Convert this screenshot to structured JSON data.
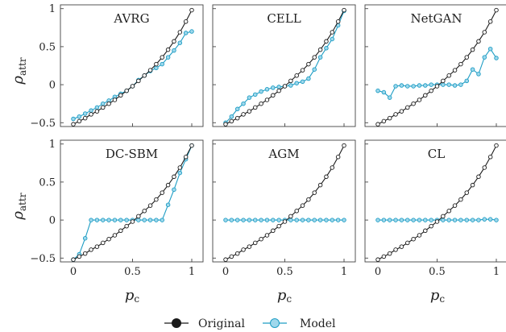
{
  "figure": {
    "ylabel_main": "ρ",
    "ylabel_sub": "attr",
    "xlabel": "p",
    "xlabel_sub": "c",
    "xticks": [
      "0",
      "0.5",
      "1"
    ],
    "yticks": [
      "1",
      "0.5",
      "0",
      "−0.5"
    ],
    "legend": [
      {
        "label": "Original",
        "color": "#1a1a1a",
        "fill": "#1a1a1a"
      },
      {
        "label": "Model",
        "color": "#1e9dc4",
        "fill": "#9fd8ec"
      }
    ]
  },
  "chart_data": [
    {
      "type": "line",
      "title": "AVRG",
      "xlim": [
        0,
        1
      ],
      "ylim": [
        -0.55,
        1.05
      ],
      "series": [
        {
          "name": "Original",
          "x": [
            0,
            0.05,
            0.1,
            0.15,
            0.2,
            0.25,
            0.3,
            0.35,
            0.4,
            0.45,
            0.5,
            0.55,
            0.6,
            0.65,
            0.7,
            0.75,
            0.8,
            0.85,
            0.9,
            0.95,
            1
          ],
          "values": [
            -0.52,
            -0.48,
            -0.44,
            -0.39,
            -0.35,
            -0.3,
            -0.25,
            -0.2,
            -0.14,
            -0.08,
            -0.02,
            0.05,
            0.12,
            0.19,
            0.27,
            0.36,
            0.46,
            0.57,
            0.69,
            0.83,
            0.98
          ]
        },
        {
          "name": "Model",
          "x": [
            0,
            0.05,
            0.1,
            0.15,
            0.2,
            0.25,
            0.3,
            0.35,
            0.4,
            0.45,
            0.5,
            0.55,
            0.6,
            0.65,
            0.7,
            0.75,
            0.8,
            0.85,
            0.9,
            0.95,
            1
          ],
          "values": [
            -0.45,
            -0.42,
            -0.38,
            -0.34,
            -0.3,
            -0.25,
            -0.21,
            -0.16,
            -0.12,
            -0.08,
            -0.02,
            0.06,
            0.12,
            0.18,
            0.22,
            0.27,
            0.36,
            0.45,
            0.55,
            0.68,
            0.7
          ]
        }
      ]
    },
    {
      "type": "line",
      "title": "CELL",
      "xlim": [
        0,
        1
      ],
      "ylim": [
        -0.55,
        1.05
      ],
      "series": [
        {
          "name": "Original",
          "x": [
            0,
            0.05,
            0.1,
            0.15,
            0.2,
            0.25,
            0.3,
            0.35,
            0.4,
            0.45,
            0.5,
            0.55,
            0.6,
            0.65,
            0.7,
            0.75,
            0.8,
            0.85,
            0.9,
            0.95,
            1
          ],
          "values": [
            -0.52,
            -0.48,
            -0.44,
            -0.39,
            -0.35,
            -0.3,
            -0.25,
            -0.2,
            -0.14,
            -0.08,
            -0.02,
            0.05,
            0.12,
            0.19,
            0.27,
            0.36,
            0.46,
            0.57,
            0.69,
            0.83,
            0.98
          ]
        },
        {
          "name": "Model",
          "x": [
            0,
            0.05,
            0.1,
            0.15,
            0.2,
            0.25,
            0.3,
            0.35,
            0.4,
            0.45,
            0.5,
            0.55,
            0.6,
            0.65,
            0.7,
            0.75,
            0.8,
            0.85,
            0.9,
            0.95,
            1
          ],
          "values": [
            -0.5,
            -0.42,
            -0.32,
            -0.25,
            -0.17,
            -0.13,
            -0.09,
            -0.06,
            -0.04,
            -0.03,
            -0.02,
            -0.01,
            0.02,
            0.04,
            0.08,
            0.2,
            0.36,
            0.48,
            0.6,
            0.78,
            0.97
          ]
        }
      ]
    },
    {
      "type": "line",
      "title": "NetGAN",
      "xlim": [
        0,
        1
      ],
      "ylim": [
        -0.55,
        1.05
      ],
      "series": [
        {
          "name": "Original",
          "x": [
            0,
            0.05,
            0.1,
            0.15,
            0.2,
            0.25,
            0.3,
            0.35,
            0.4,
            0.45,
            0.5,
            0.55,
            0.6,
            0.65,
            0.7,
            0.75,
            0.8,
            0.85,
            0.9,
            0.95,
            1
          ],
          "values": [
            -0.52,
            -0.48,
            -0.44,
            -0.39,
            -0.35,
            -0.3,
            -0.25,
            -0.2,
            -0.14,
            -0.08,
            -0.02,
            0.05,
            0.12,
            0.19,
            0.27,
            0.36,
            0.46,
            0.57,
            0.69,
            0.83,
            0.98
          ]
        },
        {
          "name": "Model",
          "x": [
            0,
            0.05,
            0.1,
            0.15,
            0.2,
            0.25,
            0.3,
            0.35,
            0.4,
            0.45,
            0.5,
            0.55,
            0.6,
            0.65,
            0.7,
            0.75,
            0.8,
            0.85,
            0.9,
            0.95,
            1
          ],
          "values": [
            -0.08,
            -0.1,
            -0.17,
            -0.02,
            -0.01,
            -0.02,
            -0.02,
            -0.01,
            -0.01,
            0.0,
            0.0,
            0.0,
            0.0,
            -0.01,
            0.0,
            0.05,
            0.2,
            0.14,
            0.36,
            0.47,
            0.35
          ]
        }
      ]
    },
    {
      "type": "line",
      "title": "DC-SBM",
      "xlim": [
        0,
        1
      ],
      "ylim": [
        -0.55,
        1.05
      ],
      "series": [
        {
          "name": "Original",
          "x": [
            0,
            0.05,
            0.1,
            0.15,
            0.2,
            0.25,
            0.3,
            0.35,
            0.4,
            0.45,
            0.5,
            0.55,
            0.6,
            0.65,
            0.7,
            0.75,
            0.8,
            0.85,
            0.9,
            0.95,
            1
          ],
          "values": [
            -0.52,
            -0.48,
            -0.44,
            -0.39,
            -0.35,
            -0.3,
            -0.25,
            -0.2,
            -0.14,
            -0.08,
            -0.02,
            0.05,
            0.12,
            0.19,
            0.27,
            0.36,
            0.46,
            0.57,
            0.69,
            0.83,
            0.98
          ]
        },
        {
          "name": "Model",
          "x": [
            0,
            0.05,
            0.1,
            0.15,
            0.2,
            0.25,
            0.3,
            0.35,
            0.4,
            0.45,
            0.5,
            0.55,
            0.6,
            0.65,
            0.7,
            0.75,
            0.8,
            0.85,
            0.9,
            0.95,
            1
          ],
          "values": [
            -0.52,
            -0.45,
            -0.24,
            0.0,
            0.0,
            0.0,
            0.0,
            0.0,
            0.0,
            0.0,
            0.0,
            0.0,
            0.0,
            0.0,
            0.0,
            0.0,
            0.2,
            0.4,
            0.62,
            0.8,
            0.98
          ]
        }
      ]
    },
    {
      "type": "line",
      "title": "AGM",
      "xlim": [
        0,
        1
      ],
      "ylim": [
        -0.55,
        1.05
      ],
      "series": [
        {
          "name": "Original",
          "x": [
            0,
            0.05,
            0.1,
            0.15,
            0.2,
            0.25,
            0.3,
            0.35,
            0.4,
            0.45,
            0.5,
            0.55,
            0.6,
            0.65,
            0.7,
            0.75,
            0.8,
            0.85,
            0.9,
            0.95,
            1
          ],
          "values": [
            -0.52,
            -0.48,
            -0.44,
            -0.39,
            -0.35,
            -0.3,
            -0.25,
            -0.2,
            -0.14,
            -0.08,
            -0.02,
            0.05,
            0.12,
            0.19,
            0.27,
            0.36,
            0.46,
            0.57,
            0.69,
            0.83,
            0.98
          ]
        },
        {
          "name": "Model",
          "x": [
            0,
            0.05,
            0.1,
            0.15,
            0.2,
            0.25,
            0.3,
            0.35,
            0.4,
            0.45,
            0.5,
            0.55,
            0.6,
            0.65,
            0.7,
            0.75,
            0.8,
            0.85,
            0.9,
            0.95,
            1
          ],
          "values": [
            0,
            0,
            0,
            0,
            0,
            0,
            0,
            0,
            0,
            0,
            0,
            0,
            0,
            0,
            0,
            0,
            0,
            0,
            0,
            0,
            0
          ]
        }
      ]
    },
    {
      "type": "line",
      "title": "CL",
      "xlim": [
        0,
        1
      ],
      "ylim": [
        -0.55,
        1.05
      ],
      "series": [
        {
          "name": "Original",
          "x": [
            0,
            0.05,
            0.1,
            0.15,
            0.2,
            0.25,
            0.3,
            0.35,
            0.4,
            0.45,
            0.5,
            0.55,
            0.6,
            0.65,
            0.7,
            0.75,
            0.8,
            0.85,
            0.9,
            0.95,
            1
          ],
          "values": [
            -0.52,
            -0.48,
            -0.44,
            -0.39,
            -0.35,
            -0.3,
            -0.25,
            -0.2,
            -0.14,
            -0.08,
            -0.02,
            0.05,
            0.12,
            0.19,
            0.27,
            0.36,
            0.46,
            0.57,
            0.69,
            0.83,
            0.98
          ]
        },
        {
          "name": "Model",
          "x": [
            0,
            0.05,
            0.1,
            0.15,
            0.2,
            0.25,
            0.3,
            0.35,
            0.4,
            0.45,
            0.5,
            0.55,
            0.6,
            0.65,
            0.7,
            0.75,
            0.8,
            0.85,
            0.9,
            0.95,
            1
          ],
          "values": [
            0,
            0,
            0,
            0,
            0,
            0,
            0,
            0,
            0,
            0,
            0,
            0,
            0,
            0,
            0,
            0,
            0,
            0,
            0.01,
            0.01,
            0
          ]
        }
      ]
    }
  ]
}
